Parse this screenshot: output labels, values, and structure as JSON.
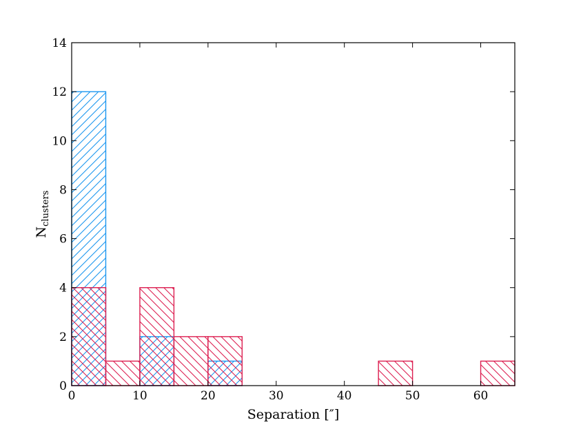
{
  "chart_data": {
    "type": "bar",
    "bin_edges": [
      0,
      5,
      10,
      15,
      20,
      25,
      30,
      35,
      40,
      45,
      50,
      55,
      60,
      65
    ],
    "series": [
      {
        "color": "#1a96f0",
        "hatch": "forward-diagonal",
        "values": [
          12,
          0,
          2,
          0,
          1,
          0,
          0,
          0,
          0,
          0,
          0,
          0,
          0
        ]
      },
      {
        "color": "#dc1e50",
        "hatch": "back-diagonal",
        "values": [
          4,
          1,
          4,
          2,
          2,
          0,
          0,
          0,
          0,
          1,
          0,
          0,
          1
        ]
      }
    ],
    "xlabel": "Separation [″]",
    "ylabel_main": "N",
    "ylabel_sub": "clusters",
    "xlim": [
      0,
      65
    ],
    "ylim": [
      0,
      14
    ],
    "xticks": [
      "0",
      "10",
      "20",
      "30",
      "40",
      "50",
      "60"
    ],
    "yticks": [
      "0",
      "2",
      "4",
      "6",
      "8",
      "10",
      "12",
      "14"
    ],
    "grid": false
  }
}
